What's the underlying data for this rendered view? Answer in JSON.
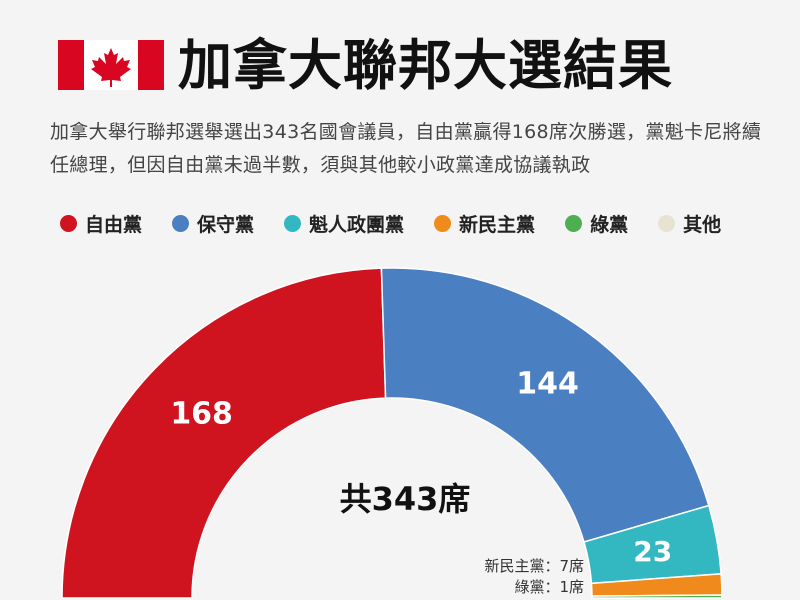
{
  "header": {
    "title": "加拿大聯邦大選結果",
    "flag": "canada-flag"
  },
  "description": "加拿大舉行聯邦選舉選出343名國會議員，自由黨贏得168席次勝選，黨魁卡尼將續任總理，但因自由黨未過半數，須與其他較小政黨達成協議執政",
  "colors": {
    "liberal": "#d0141f",
    "conservative": "#4a7fc1",
    "bloc": "#33b8c2",
    "ndp": "#f08a1c",
    "green": "#4caf50",
    "other": "#e8e2d0",
    "flag_red": "#d80621"
  },
  "chart_data": {
    "type": "pie",
    "shape": "half-donut",
    "title": "加拿大聯邦大選結果",
    "center_label": "共343席",
    "total": 343,
    "series": [
      {
        "name": "自由黨",
        "value": 168,
        "color": "#d0141f",
        "label": "168"
      },
      {
        "name": "保守黨",
        "value": 144,
        "color": "#4a7fc1",
        "label": "144"
      },
      {
        "name": "魁人政團黨",
        "value": 23,
        "color": "#33b8c2",
        "label": "23"
      },
      {
        "name": "新民主黨",
        "value": 7,
        "color": "#f08a1c",
        "label": "新民主黨：7席"
      },
      {
        "name": "綠黨",
        "value": 1,
        "color": "#4caf50",
        "label": "綠黨：1席"
      },
      {
        "name": "其他",
        "value": 0,
        "color": "#e8e2d0",
        "label": ""
      }
    ],
    "legend": [
      "自由黨",
      "保守黨",
      "魁人政團黨",
      "新民主黨",
      "綠黨",
      "其他"
    ],
    "legend_position": "top"
  }
}
